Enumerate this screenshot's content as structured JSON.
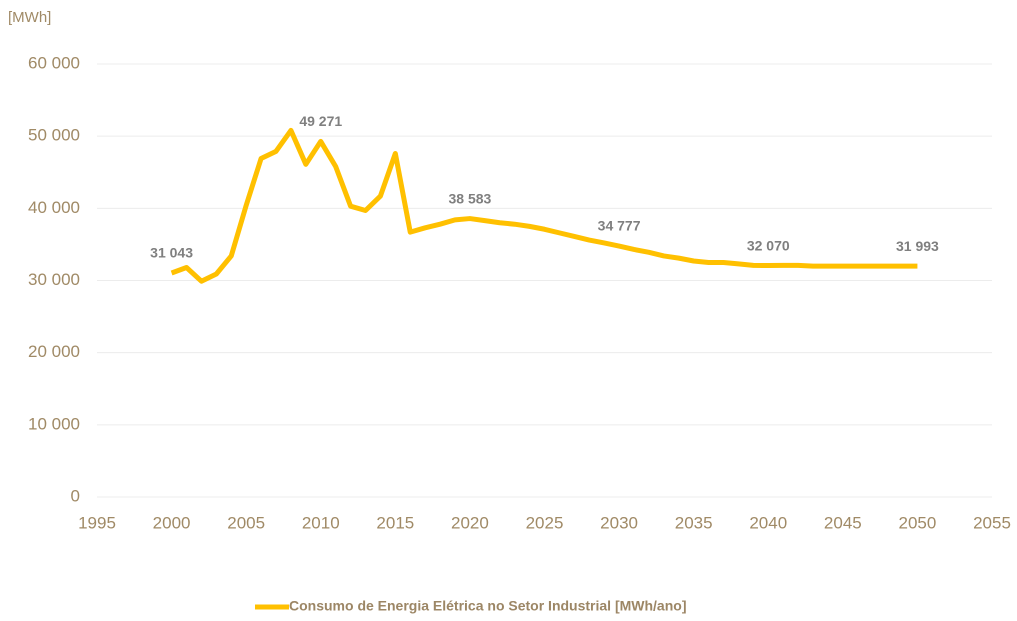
{
  "chart_data": {
    "type": "line",
    "y_unit_label": "[MWh]",
    "x": [
      2000,
      2001,
      2002,
      2003,
      2004,
      2005,
      2006,
      2007,
      2008,
      2009,
      2010,
      2011,
      2012,
      2013,
      2014,
      2015,
      2016,
      2017,
      2018,
      2019,
      2020,
      2021,
      2022,
      2023,
      2024,
      2025,
      2026,
      2027,
      2028,
      2029,
      2030,
      2031,
      2032,
      2033,
      2034,
      2035,
      2036,
      2037,
      2038,
      2039,
      2040,
      2041,
      2042,
      2043,
      2044,
      2045,
      2046,
      2047,
      2048,
      2049,
      2050
    ],
    "series": [
      {
        "name": "Consumo de Energia Elétrica no Setor Industrial [MWh/ano]",
        "color": "#ffc000",
        "values": [
          31043,
          31800,
          29900,
          30900,
          33400,
          40400,
          46900,
          47900,
          50800,
          46100,
          49271,
          45800,
          40300,
          39700,
          41700,
          47600,
          36700,
          37300,
          37800,
          38400,
          38583,
          38300,
          38000,
          37800,
          37500,
          37100,
          36600,
          36100,
          35600,
          35200,
          34777,
          34300,
          33900,
          33400,
          33100,
          32700,
          32500,
          32500,
          32300,
          32100,
          32070,
          32100,
          32100,
          32000,
          32000,
          32000,
          32000,
          32000,
          32000,
          32000,
          31993
        ],
        "value_labels": [
          "31 043",
          null,
          null,
          null,
          null,
          null,
          null,
          null,
          null,
          null,
          "49 271",
          null,
          null,
          null,
          null,
          null,
          null,
          null,
          null,
          null,
          "38 583",
          null,
          null,
          null,
          null,
          null,
          null,
          null,
          null,
          null,
          "34 777",
          null,
          null,
          null,
          null,
          null,
          null,
          null,
          null,
          null,
          "32 070",
          null,
          null,
          null,
          null,
          null,
          null,
          null,
          null,
          null,
          "31 993"
        ]
      }
    ],
    "xlim": [
      1995,
      2055
    ],
    "xticks": [
      1995,
      2000,
      2005,
      2010,
      2015,
      2020,
      2025,
      2030,
      2035,
      2040,
      2045,
      2050,
      2055
    ],
    "ylim": [
      0,
      60000
    ],
    "yticks": [
      0,
      {
        "value": 10000,
        "label": "10 000"
      },
      {
        "value": 20000,
        "label": "20 000"
      },
      {
        "value": 30000,
        "label": "30 000"
      },
      {
        "value": 40000,
        "label": "40 000"
      },
      {
        "value": 50000,
        "label": "50 000"
      },
      {
        "value": 60000,
        "label": "60 000"
      }
    ],
    "grid": true,
    "legend": "bottom"
  }
}
